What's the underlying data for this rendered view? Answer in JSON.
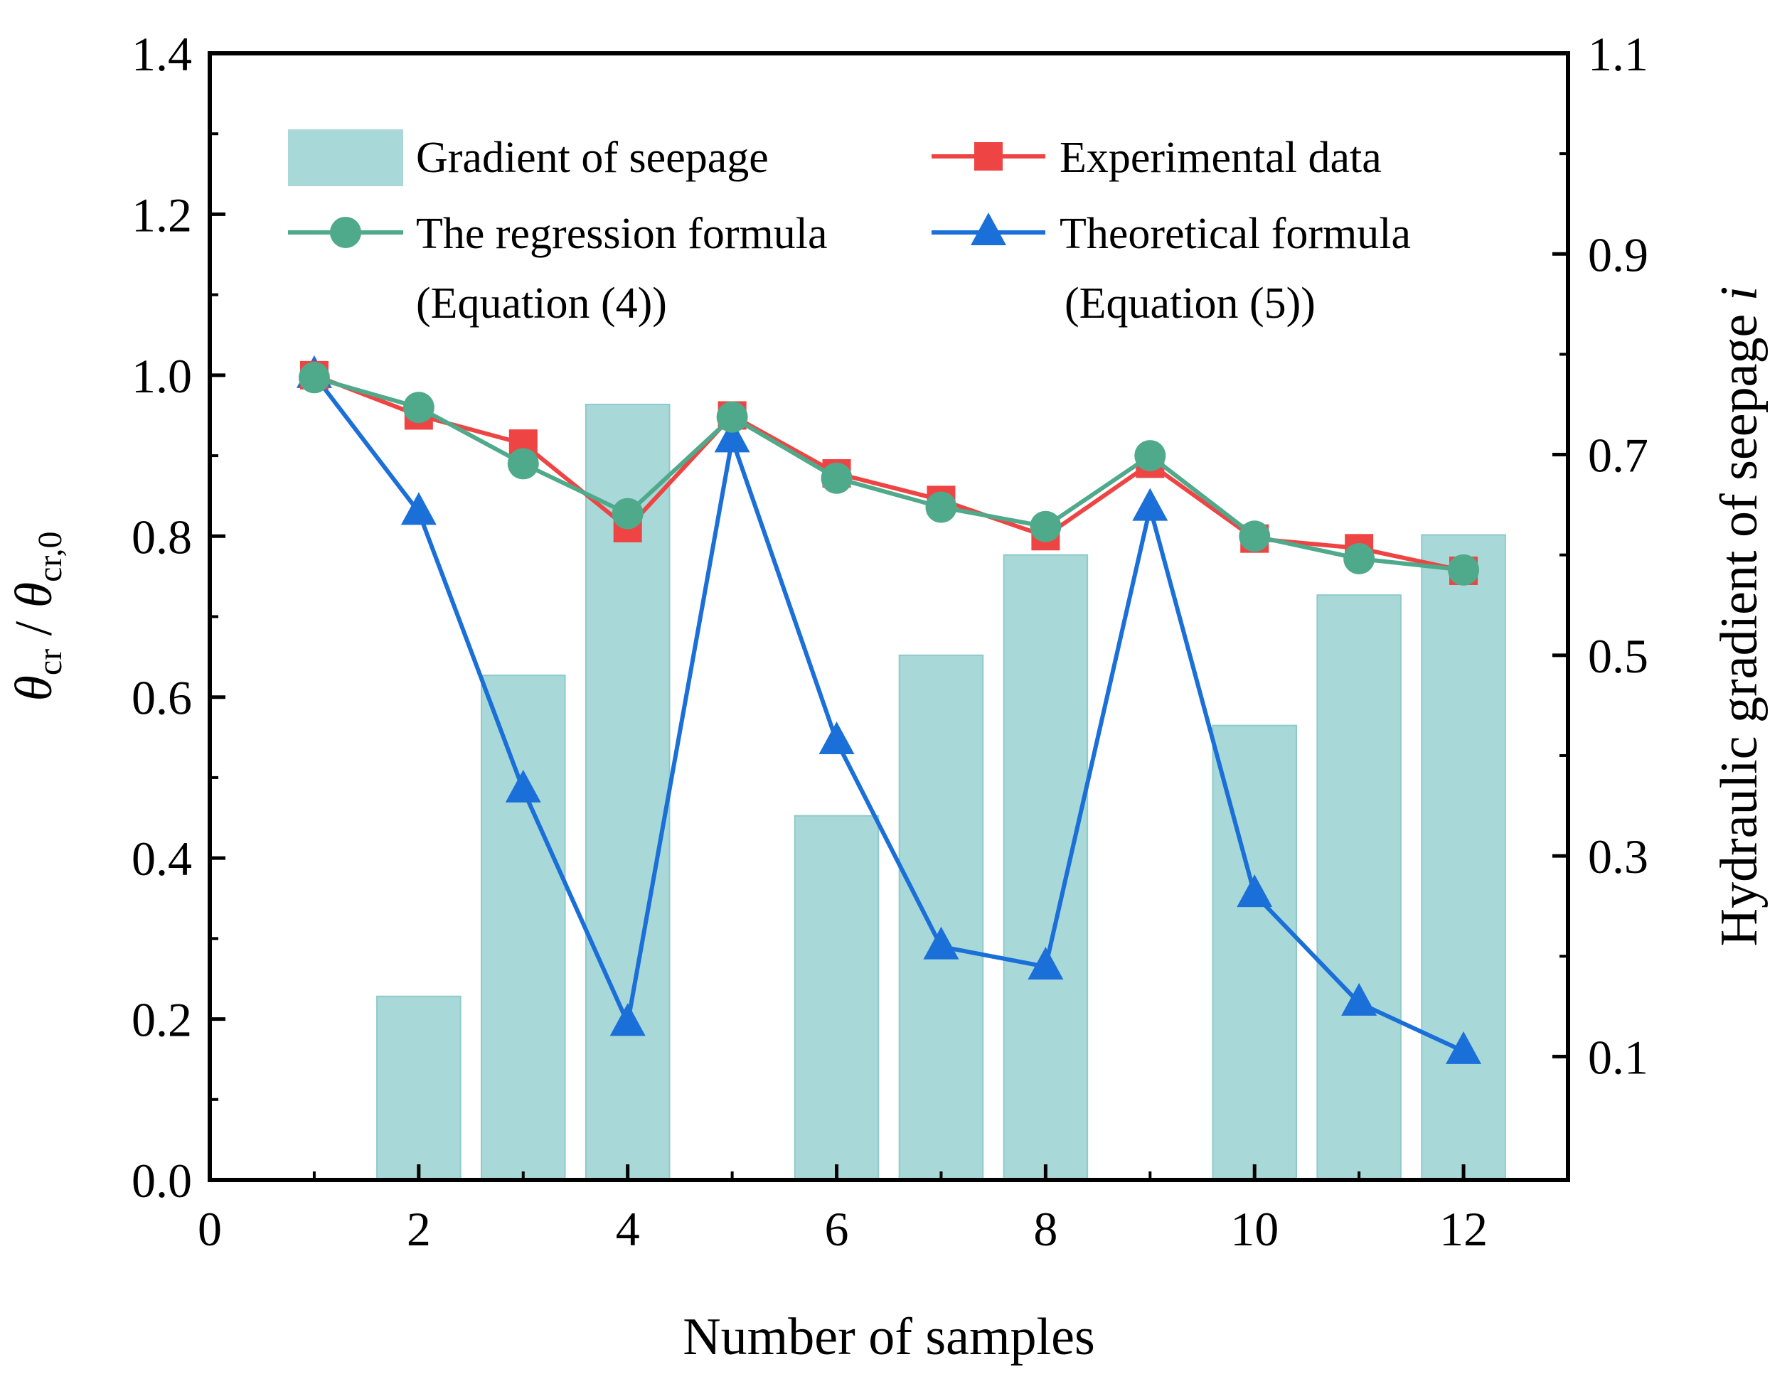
{
  "chart_data": {
    "type": "bar",
    "x": {
      "label": "Number of samples",
      "range": [
        0,
        13
      ],
      "ticks": [
        0,
        2,
        4,
        6,
        8,
        10,
        12
      ]
    },
    "y_left": {
      "label_parts": [
        "θ",
        "cr",
        " / ",
        "θ",
        "cr,0"
      ],
      "range": [
        0,
        1.4
      ],
      "ticks": [
        "0.0",
        "0.2",
        "0.4",
        "0.6",
        "0.8",
        "1.0",
        "1.2",
        "1.4"
      ]
    },
    "y_right": {
      "label_parts": [
        "Hydraulic gradient of seepage ",
        "i"
      ],
      "range": [
        -0.023,
        1.1
      ],
      "ticks": [
        "0.1",
        "0.3",
        "0.5",
        "0.7",
        "0.9",
        "1.1"
      ]
    },
    "bars": {
      "name": "Gradient of seepage",
      "axis": "right",
      "color": "#a8d8d8",
      "x": [
        2,
        3,
        4,
        6,
        7,
        8,
        10,
        11,
        12
      ],
      "values": [
        0.16,
        0.48,
        0.75,
        0.34,
        0.5,
        0.6,
        0.43,
        0.56,
        0.62
      ]
    },
    "series": [
      {
        "name": "Experimental data",
        "axis": "left",
        "color": "#ef4444",
        "marker": "square",
        "x": [
          1,
          2,
          3,
          4,
          5,
          6,
          7,
          8,
          9,
          10,
          11,
          12
        ],
        "values": [
          1.0,
          0.95,
          0.915,
          0.81,
          0.95,
          0.878,
          0.845,
          0.8,
          0.89,
          0.797,
          0.785,
          0.757
        ]
      },
      {
        "name": "The regression formula",
        "name_line2": "(Equation (4))",
        "axis": "left",
        "color": "#4faa8c",
        "marker": "circle",
        "x": [
          1,
          2,
          3,
          4,
          5,
          6,
          7,
          8,
          9,
          10,
          11,
          12
        ],
        "values": [
          0.997,
          0.96,
          0.89,
          0.828,
          0.948,
          0.872,
          0.836,
          0.812,
          0.9,
          0.8,
          0.772,
          0.758
        ]
      },
      {
        "name": "Theoretical formula",
        "name_line2": "(Equation (5))",
        "axis": "left",
        "color": "#1a6fd8",
        "marker": "triangle",
        "x": [
          1,
          2,
          3,
          4,
          5,
          6,
          7,
          8,
          9,
          10,
          11,
          12
        ],
        "values": [
          1.0,
          0.83,
          0.485,
          0.195,
          0.92,
          0.545,
          0.29,
          0.265,
          0.835,
          0.355,
          0.22,
          0.16
        ]
      }
    ],
    "legend": {
      "placement": "top, two columns"
    }
  }
}
